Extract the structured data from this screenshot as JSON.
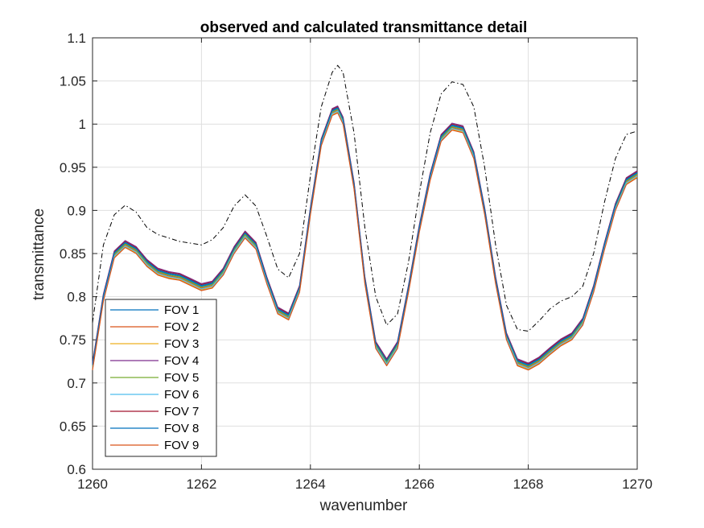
{
  "chart_data": {
    "type": "line",
    "title": "observed and calculated transmittance detail",
    "xlabel": "wavenumber",
    "ylabel": "transmittance",
    "xlim": [
      1260,
      1270
    ],
    "ylim": [
      0.6,
      1.1
    ],
    "xticks": [
      1260,
      1262,
      1264,
      1266,
      1268,
      1270
    ],
    "yticks": [
      0.6,
      0.65,
      0.7,
      0.75,
      0.8,
      0.85,
      0.9,
      0.95,
      1,
      1.05,
      1.1
    ],
    "xtick_labels": [
      "1260",
      "1262",
      "1264",
      "1266",
      "1268",
      "1270"
    ],
    "ytick_labels": [
      "0.6",
      "0.65",
      "0.7",
      "0.75",
      "0.8",
      "0.85",
      "0.9",
      "0.95",
      "1",
      "1.05",
      "1.1"
    ],
    "grid": true,
    "legend_position": "bottom-left",
    "x": [
      1260.0,
      1260.2,
      1260.4,
      1260.6,
      1260.8,
      1261.0,
      1261.2,
      1261.4,
      1261.6,
      1261.8,
      1262.0,
      1262.2,
      1262.4,
      1262.6,
      1262.8,
      1263.0,
      1263.2,
      1263.4,
      1263.6,
      1263.8,
      1264.0,
      1264.2,
      1264.4,
      1264.5,
      1264.6,
      1264.8,
      1265.0,
      1265.2,
      1265.4,
      1265.6,
      1265.8,
      1266.0,
      1266.2,
      1266.4,
      1266.6,
      1266.8,
      1267.0,
      1267.2,
      1267.4,
      1267.6,
      1267.8,
      1268.0,
      1268.2,
      1268.4,
      1268.6,
      1268.8,
      1269.0,
      1269.2,
      1269.4,
      1269.6,
      1269.8,
      1270.0
    ],
    "base_observed": [
      0.72,
      0.8,
      0.85,
      0.862,
      0.855,
      0.84,
      0.83,
      0.826,
      0.824,
      0.818,
      0.812,
      0.815,
      0.83,
      0.855,
      0.873,
      0.86,
      0.82,
      0.785,
      0.778,
      0.81,
      0.9,
      0.98,
      1.015,
      1.018,
      1.005,
      0.93,
      0.82,
      0.745,
      0.725,
      0.745,
      0.81,
      0.88,
      0.94,
      0.985,
      0.998,
      0.995,
      0.965,
      0.9,
      0.82,
      0.755,
      0.725,
      0.72,
      0.727,
      0.738,
      0.748,
      0.755,
      0.772,
      0.81,
      0.86,
      0.905,
      0.935,
      0.943
    ],
    "series": [
      {
        "name": "FOV 1",
        "color": "#0072BD",
        "offset": 0.0
      },
      {
        "name": "FOV 2",
        "color": "#D95319",
        "offset": -0.002
      },
      {
        "name": "FOV 3",
        "color": "#EDB120",
        "offset": -0.004
      },
      {
        "name": "FOV 4",
        "color": "#7E2F8E",
        "offset": 0.003
      },
      {
        "name": "FOV 5",
        "color": "#77AC30",
        "offset": -0.001
      },
      {
        "name": "FOV 6",
        "color": "#4DBEEE",
        "offset": -0.003
      },
      {
        "name": "FOV 7",
        "color": "#A2142F",
        "offset": 0.002
      },
      {
        "name": "FOV 8",
        "color": "#0072BD",
        "offset": 0.001
      },
      {
        "name": "FOV 9",
        "color": "#D95319",
        "offset": -0.005
      }
    ],
    "calculated": {
      "color": "#000000",
      "style": "dash-dot",
      "values": [
        0.77,
        0.86,
        0.895,
        0.906,
        0.898,
        0.88,
        0.872,
        0.868,
        0.864,
        0.862,
        0.86,
        0.866,
        0.88,
        0.905,
        0.918,
        0.905,
        0.87,
        0.832,
        0.822,
        0.85,
        0.94,
        1.02,
        1.06,
        1.068,
        1.06,
        0.99,
        0.88,
        0.8,
        0.767,
        0.78,
        0.84,
        0.92,
        0.99,
        1.035,
        1.049,
        1.046,
        1.02,
        0.95,
        0.86,
        0.79,
        0.762,
        0.76,
        0.772,
        0.786,
        0.795,
        0.8,
        0.812,
        0.85,
        0.91,
        0.96,
        0.988,
        0.992
      ]
    }
  }
}
